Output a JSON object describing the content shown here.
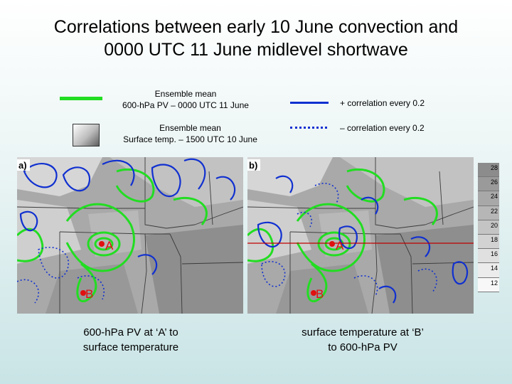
{
  "title": {
    "line1": "Correlations between early 10 June convection and",
    "line2": "0000 UTC 11 June midlevel shortwave"
  },
  "legend": {
    "pv": {
      "line1": "Ensemble mean",
      "line2": "600-hPa PV – 0000 UTC 11 June",
      "color": "#22dd22"
    },
    "temp": {
      "line1": "Ensemble mean",
      "line2": "Surface temp. – 1500 UTC 10 June"
    },
    "pos_corr": {
      "label": "+ correlation every 0.2",
      "color": "#1030d0"
    },
    "neg_corr": {
      "label": "– correlation every 0.2",
      "color": "#1030d0"
    }
  },
  "panels": [
    {
      "tag": "a)",
      "point_a": "A",
      "point_b": "B",
      "caption_line1": "600-hPa PV at ‘A’ to",
      "caption_line2": "surface temperature"
    },
    {
      "tag": "b)",
      "point_a": "A",
      "point_b": "B",
      "caption_line1": "surface temperature at ‘B’",
      "caption_line2": "to 600-hPa PV"
    }
  ],
  "colorbar": {
    "levels": [
      "28",
      "26",
      "24",
      "22",
      "20",
      "18",
      "16",
      "14",
      "12"
    ],
    "shades": [
      "#8c8c8c",
      "#9a9a9a",
      "#a8a8a8",
      "#b6b6b6",
      "#c4c4c4",
      "#d2d2d2",
      "#e0e0e0",
      "#ececec",
      "#f8f8f8"
    ]
  },
  "colors": {
    "marker": "#e01010",
    "section_line": "#c00000"
  }
}
